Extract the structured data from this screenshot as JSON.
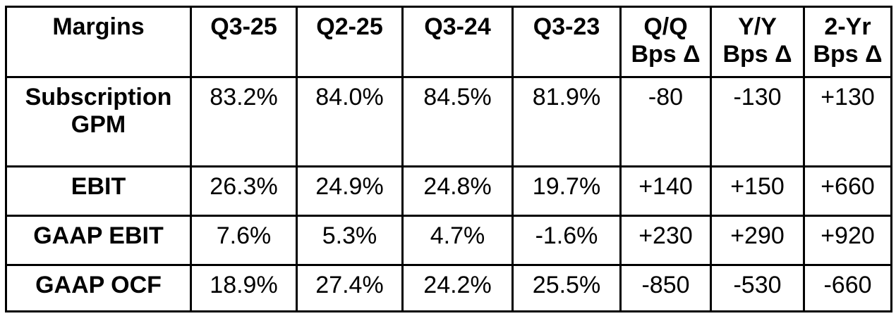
{
  "colors": {
    "background": "#ffffff",
    "border": "#000000",
    "text": "#000000"
  },
  "chart_data": {
    "type": "table",
    "title": "Margins",
    "columns": [
      {
        "line1": "Margins",
        "line2": ""
      },
      {
        "line1": "Q3-25",
        "line2": ""
      },
      {
        "line1": "Q2-25",
        "line2": ""
      },
      {
        "line1": "Q3-24",
        "line2": ""
      },
      {
        "line1": "Q3-23",
        "line2": ""
      },
      {
        "line1": "Q/Q",
        "line2": "Bps Δ"
      },
      {
        "line1": "Y/Y",
        "line2": "Bps Δ"
      },
      {
        "line1": "2-Yr",
        "line2": "Bps Δ"
      }
    ],
    "rows": [
      {
        "label": "Subscription GPM",
        "values": [
          "83.2%",
          "84.0%",
          "84.5%",
          "81.9%",
          "-80",
          "-130",
          "+130"
        ]
      },
      {
        "label": "EBIT",
        "values": [
          "26.3%",
          "24.9%",
          "24.8%",
          "19.7%",
          "+140",
          "+150",
          "+660"
        ]
      },
      {
        "label": "GAAP EBIT",
        "values": [
          "7.6%",
          "5.3%",
          "4.7%",
          "-1.6%",
          "+230",
          "+290",
          "+920"
        ]
      },
      {
        "label": "GAAP OCF",
        "values": [
          "18.9%",
          "27.4%",
          "24.2%",
          "25.5%",
          "-850",
          "-530",
          "-660"
        ]
      }
    ]
  }
}
